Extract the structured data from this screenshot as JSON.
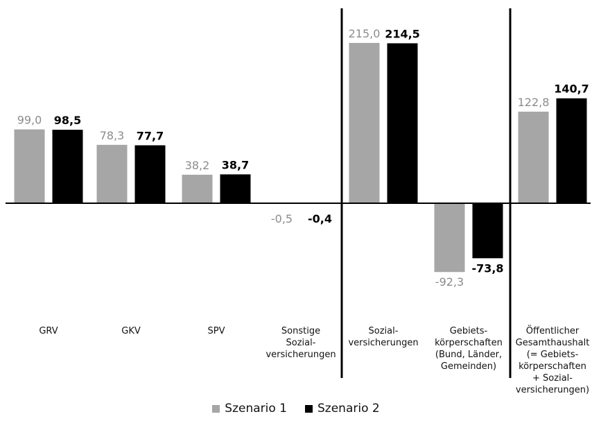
{
  "colors": {
    "series1": "#a6a6a6",
    "series2": "#000000",
    "series1_label": "#8c8c8c",
    "series2_label": "#000000",
    "axis": "#000000",
    "text": "#111111"
  },
  "legend": {
    "items": [
      {
        "label": "Szenario 1"
      },
      {
        "label": "Szenario 2"
      }
    ]
  },
  "chart_data": {
    "type": "bar",
    "title": "",
    "xlabel": "",
    "ylabel": "",
    "ylim": [
      -110,
      240
    ],
    "grid": false,
    "legend_position": "bottom",
    "categories": [
      [
        "GRV"
      ],
      [
        "GKV"
      ],
      [
        "SPV"
      ],
      [
        "Sonstige",
        "Sozial-",
        "versicherungen"
      ],
      [
        "Sozial-",
        "versicherungen"
      ],
      [
        "Gebiets-",
        "körperschaften",
        "(Bund, Länder,",
        "Gemeinden)"
      ],
      [
        "Öffentlicher",
        "Gesamthaushalt",
        "(= Gebiets-",
        "körperschaften",
        "+ Sozial-",
        "versicherungen)"
      ]
    ],
    "series": [
      {
        "name": "Szenario 1",
        "values": [
          99.0,
          78.3,
          38.2,
          -0.5,
          215.0,
          -92.3,
          122.8
        ],
        "labels": [
          "99,0",
          "78,3",
          "38,2",
          "-0,5",
          "215,0",
          "-92,3",
          "122,8"
        ]
      },
      {
        "name": "Szenario 2",
        "values": [
          98.5,
          77.7,
          38.7,
          -0.4,
          214.5,
          -73.8,
          140.7
        ],
        "labels": [
          "98,5",
          "77,7",
          "38,7",
          "-0,4",
          "214,5",
          "-73,8",
          "140,7"
        ]
      }
    ],
    "separators_after_category": [
      3,
      4
    ]
  }
}
